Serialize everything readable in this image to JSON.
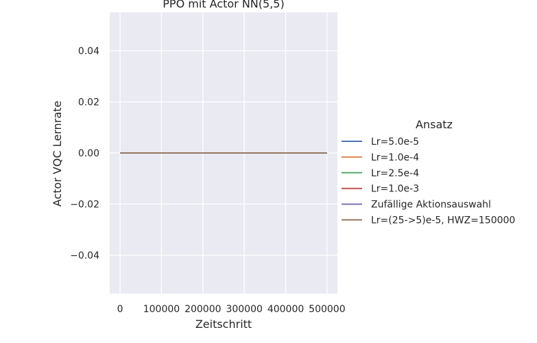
{
  "chart_data": {
    "type": "line",
    "title": "PPO mit Actor NN(5,5)",
    "xlabel": "Zeitschritt",
    "ylabel": "Actor VQC Lernrate",
    "xlim": [
      -25000,
      525000
    ],
    "ylim": [
      -0.055,
      0.055
    ],
    "xticks": [
      0,
      100000,
      200000,
      300000,
      400000,
      500000
    ],
    "xtick_labels": [
      "0",
      "100000",
      "200000",
      "300000",
      "400000",
      "500000"
    ],
    "yticks": [
      0.04,
      0.02,
      0.0,
      -0.02,
      -0.04
    ],
    "ytick_labels": [
      "0.04",
      "0.02",
      "0.00",
      "−0.02",
      "−0.04"
    ],
    "grid": true,
    "background": "#eaeaf2",
    "legend": {
      "title": "Ansatz",
      "position": "right"
    },
    "x": [
      0,
      100000,
      200000,
      300000,
      400000,
      500000
    ],
    "series": [
      {
        "name": "Lr=5.0e-5",
        "color": "#4c72b0",
        "values": [
          0,
          0,
          0,
          0,
          0,
          0
        ]
      },
      {
        "name": "Lr=1.0e-4",
        "color": "#dd8452",
        "values": [
          0,
          0,
          0,
          0,
          0,
          0
        ]
      },
      {
        "name": "Lr=2.5e-4",
        "color": "#55a868",
        "values": [
          0,
          0,
          0,
          0,
          0,
          0
        ]
      },
      {
        "name": "Lr=1.0e-3",
        "color": "#c44e52",
        "values": [
          0,
          0,
          0,
          0,
          0,
          0
        ]
      },
      {
        "name": "Zufällige Aktionsauswahl",
        "color": "#8172b3",
        "values": [
          0,
          0,
          0,
          0,
          0,
          0
        ]
      },
      {
        "name": "Lr=(25->5)e-5, HWZ=150000",
        "color": "#937860",
        "values": [
          0,
          0,
          0,
          0,
          0,
          0
        ]
      }
    ]
  }
}
